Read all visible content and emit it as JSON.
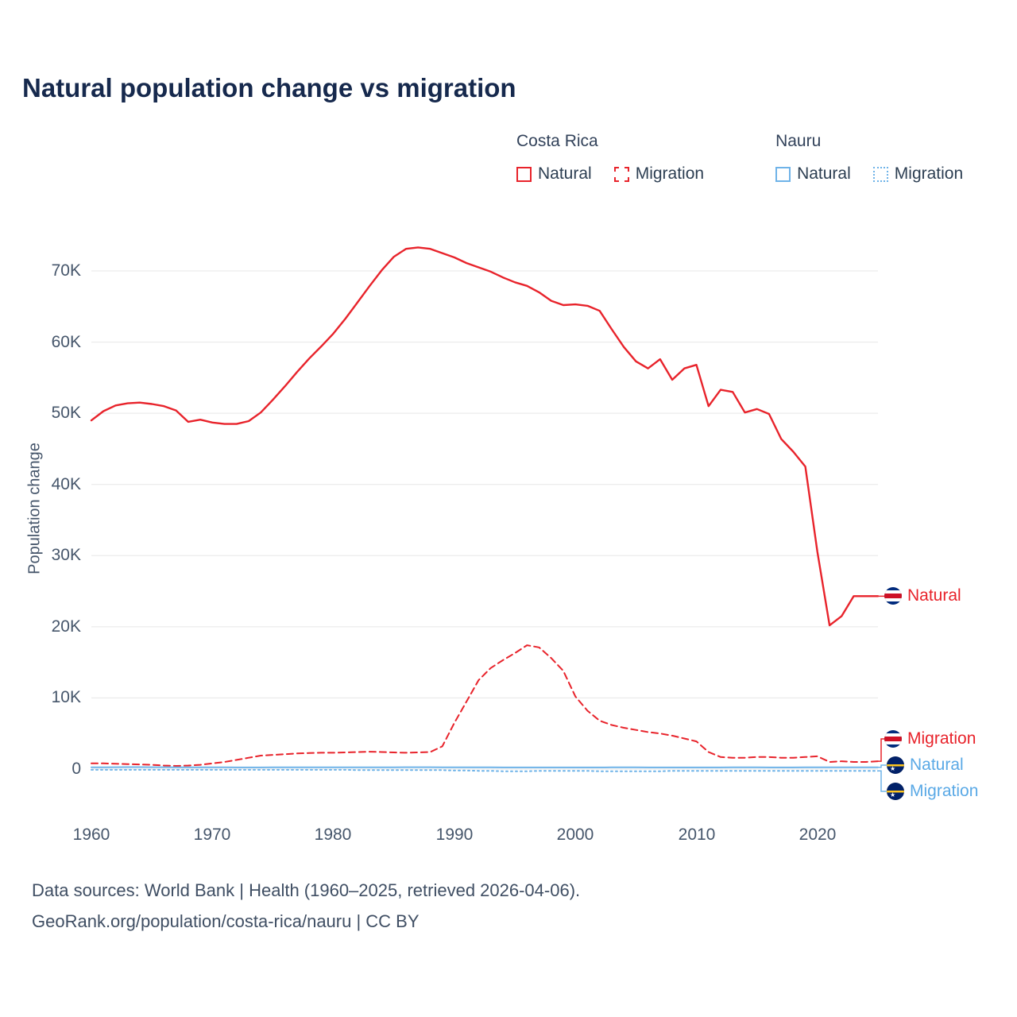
{
  "title": "Natural population change vs migration",
  "legend": {
    "groups": [
      {
        "country": "Costa Rica",
        "items": [
          {
            "label": "Natural",
            "style": "solid",
            "color": "#e8232b"
          },
          {
            "label": "Migration",
            "style": "dashed",
            "color": "#e8232b"
          }
        ]
      },
      {
        "country": "Nauru",
        "items": [
          {
            "label": "Natural",
            "style": "solid",
            "color": "#6fb3e8"
          },
          {
            "label": "Migration",
            "style": "dotted",
            "color": "#6fb3e8"
          }
        ]
      }
    ]
  },
  "y_axis": {
    "title": "Population change",
    "ticks": [
      "0",
      "10K",
      "20K",
      "30K",
      "40K",
      "50K",
      "60K",
      "70K"
    ]
  },
  "x_axis": {
    "ticks": [
      "1960",
      "1970",
      "1980",
      "1990",
      "2000",
      "2010",
      "2020"
    ]
  },
  "end_labels": [
    {
      "label": "Natural",
      "country": "Costa Rica"
    },
    {
      "label": "Migration",
      "country": "Costa Rica"
    },
    {
      "label": "Natural",
      "country": "Nauru"
    },
    {
      "label": "Migration",
      "country": "Nauru"
    }
  ],
  "footer": {
    "line1": "Data sources: World Bank | Health (1960–2025, retrieved 2026-04-06).",
    "line2": "GeoRank.org/population/costa-rica/nauru | CC BY"
  },
  "chart_data": {
    "type": "line",
    "title": "Natural population change vs migration",
    "xlabel": "",
    "ylabel": "Population change",
    "xlim": [
      1960,
      2025
    ],
    "ylim": [
      -2000,
      75000
    ],
    "grid": "horizontal",
    "legend_position": "top-right",
    "x": [
      1960,
      1961,
      1962,
      1963,
      1964,
      1965,
      1966,
      1967,
      1968,
      1969,
      1970,
      1971,
      1972,
      1973,
      1974,
      1975,
      1976,
      1977,
      1978,
      1979,
      1980,
      1981,
      1982,
      1983,
      1984,
      1985,
      1986,
      1987,
      1988,
      1989,
      1990,
      1991,
      1992,
      1993,
      1994,
      1995,
      1996,
      1997,
      1998,
      1999,
      2000,
      2001,
      2002,
      2003,
      2004,
      2005,
      2006,
      2007,
      2008,
      2009,
      2010,
      2011,
      2012,
      2013,
      2014,
      2015,
      2016,
      2017,
      2018,
      2019,
      2020,
      2021,
      2022,
      2023,
      2024,
      2025
    ],
    "series": [
      {
        "name": "Costa Rica Natural",
        "color": "#e8232b",
        "dash": "solid",
        "values": [
          49000,
          50300,
          51100,
          51400,
          51500,
          51300,
          51000,
          50400,
          48800,
          49100,
          48700,
          48500,
          48500,
          48900,
          50100,
          51900,
          53800,
          55800,
          57700,
          59400,
          61200,
          63300,
          65600,
          67900,
          70100,
          72000,
          73100,
          73300,
          73100,
          72500,
          71900,
          71100,
          70500,
          69900,
          69100,
          68400,
          67900,
          67000,
          65800,
          65200,
          65300,
          65100,
          64400,
          61800,
          59300,
          57300,
          56300,
          57600,
          54700,
          56300,
          56800,
          51000,
          53300,
          53000,
          50100,
          50600,
          49900,
          46400,
          44600,
          42500,
          30500,
          20200,
          21500,
          24300,
          24300,
          24300
        ]
      },
      {
        "name": "Costa Rica Migration",
        "color": "#e8232b",
        "dash": "dashed",
        "values": [
          800,
          800,
          750,
          700,
          650,
          600,
          500,
          450,
          500,
          600,
          800,
          1000,
          1300,
          1600,
          1900,
          2000,
          2100,
          2200,
          2250,
          2300,
          2300,
          2350,
          2400,
          2450,
          2400,
          2350,
          2300,
          2350,
          2400,
          3200,
          6500,
          9500,
          12500,
          14200,
          15300,
          16300,
          17400,
          17100,
          15600,
          13800,
          10200,
          8200,
          6800,
          6200,
          5800,
          5500,
          5200,
          5000,
          4700,
          4300,
          3900,
          2400,
          1700,
          1600,
          1600,
          1700,
          1700,
          1600,
          1600,
          1700,
          1800,
          1000,
          1100,
          1000,
          1000,
          1100
        ]
      },
      {
        "name": "Nauru Natural",
        "color": "#6fb3e8",
        "dash": "solid",
        "values": [
          250,
          260,
          270,
          280,
          280,
          270,
          270,
          260,
          260,
          250,
          250,
          250,
          240,
          240,
          240,
          250,
          250,
          250,
          260,
          260,
          260,
          250,
          250,
          250,
          260,
          260,
          270,
          270,
          270,
          260,
          260,
          250,
          250,
          250,
          240,
          240,
          240,
          230,
          230,
          230,
          240,
          240,
          240,
          250,
          250,
          250,
          240,
          240,
          230,
          230,
          230,
          240,
          240,
          250,
          250,
          250,
          240,
          240,
          240,
          250,
          250,
          250,
          250,
          250,
          250,
          250
        ]
      },
      {
        "name": "Nauru Migration",
        "color": "#6fb3e8",
        "dash": "dotted",
        "values": [
          -100,
          -100,
          -100,
          -100,
          -100,
          -100,
          -100,
          -100,
          -100,
          -100,
          -100,
          -100,
          -100,
          -100,
          -100,
          -100,
          -100,
          -100,
          -100,
          -100,
          -100,
          -100,
          -150,
          -150,
          -150,
          -150,
          -150,
          -150,
          -150,
          -150,
          -200,
          -200,
          -250,
          -250,
          -300,
          -300,
          -300,
          -250,
          -250,
          -250,
          -250,
          -250,
          -300,
          -300,
          -300,
          -300,
          -300,
          -300,
          -250,
          -250,
          -250,
          -250,
          -250,
          -250,
          -250,
          -250,
          -250,
          -250,
          -250,
          -250,
          -250,
          -250,
          -250,
          -250,
          -250,
          -250
        ]
      }
    ]
  }
}
